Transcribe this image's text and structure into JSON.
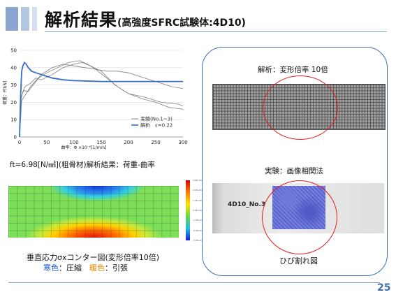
{
  "header": {
    "title_main": "解析結果",
    "title_sub": "(高強度SFRC試験体:4D10)"
  },
  "chart_data": {
    "type": "line",
    "xlabel": "曲率：Φ ×10⁻⁶[1/mm]",
    "ylabel": "荷重：P[kN]",
    "xlim": [
      0,
      300
    ],
    "ylim": [
      0,
      50
    ],
    "xticks": [
      0,
      50,
      100,
      150,
      200,
      250,
      300
    ],
    "yticks": [
      0,
      10,
      20,
      30,
      40,
      50
    ],
    "legend_position": "inside-bottom-right",
    "series": [
      {
        "name": "実験(No.1~3)",
        "color": "#7f7f7f",
        "points": [
          [
            0,
            0
          ],
          [
            3,
            22
          ],
          [
            6,
            26
          ],
          [
            10,
            29
          ],
          [
            20,
            31
          ],
          [
            30,
            34
          ],
          [
            40,
            33
          ],
          [
            60,
            36
          ],
          [
            80,
            40
          ],
          [
            100,
            42
          ],
          [
            115,
            43
          ],
          [
            130,
            41
          ],
          [
            150,
            38
          ],
          [
            175,
            30
          ],
          [
            200,
            25
          ],
          [
            225,
            22
          ],
          [
            250,
            20
          ],
          [
            275,
            17
          ],
          [
            300,
            16
          ]
        ]
      },
      {
        "name": "",
        "color": "#7f7f7f",
        "points": [
          [
            0,
            0
          ],
          [
            3,
            23
          ],
          [
            8,
            27
          ],
          [
            15,
            26
          ],
          [
            25,
            30
          ],
          [
            35,
            34
          ],
          [
            50,
            37
          ],
          [
            70,
            40
          ],
          [
            90,
            43
          ],
          [
            110,
            44
          ],
          [
            125,
            42
          ],
          [
            140,
            39
          ],
          [
            160,
            34
          ],
          [
            180,
            29
          ],
          [
            200,
            25
          ],
          [
            230,
            23
          ],
          [
            260,
            20
          ],
          [
            290,
            19
          ],
          [
            300,
            18
          ]
        ]
      },
      {
        "name": "",
        "color": "#7f7f7f",
        "points": [
          [
            0,
            0
          ],
          [
            4,
            21
          ],
          [
            10,
            24
          ],
          [
            20,
            29
          ],
          [
            40,
            36
          ],
          [
            60,
            40
          ],
          [
            80,
            42
          ],
          [
            100,
            41
          ],
          [
            120,
            40
          ],
          [
            140,
            39
          ],
          [
            160,
            38
          ],
          [
            180,
            38
          ],
          [
            200,
            37
          ],
          [
            220,
            35
          ],
          [
            240,
            33
          ],
          [
            260,
            31
          ],
          [
            280,
            29
          ],
          [
            300,
            28
          ]
        ]
      },
      {
        "name": "解析　ε=0.22",
        "color": "#3a6bc4",
        "points": [
          [
            0,
            0
          ],
          [
            2,
            25
          ],
          [
            4,
            38
          ],
          [
            6,
            41
          ],
          [
            9,
            43
          ],
          [
            12,
            42
          ],
          [
            16,
            40
          ],
          [
            22,
            38
          ],
          [
            30,
            37
          ],
          [
            40,
            36
          ],
          [
            60,
            34
          ],
          [
            80,
            33
          ],
          [
            100,
            32.5
          ],
          [
            150,
            32
          ],
          [
            200,
            32
          ],
          [
            250,
            32
          ],
          [
            300,
            32
          ]
        ]
      }
    ]
  },
  "chart_caption": "ft=6.98[N/㎟](粗骨材)解析結果：荷重-曲率",
  "contour": {
    "caption_line1": "垂直応力σxコンター図(変形倍率10倍)",
    "cold_label": "寒色",
    "cold_text": "：圧縮",
    "warm_label": "暖色",
    "warm_text": "：引張",
    "colorbar_labels": [
      "3.0E+00",
      "2.0E+00",
      "1.0E+00",
      "0.0E+00",
      "-1.0E+00",
      "-2.0E+00",
      "-3.0E+00"
    ],
    "colors": {
      "cold": "#1b57d6",
      "warm": "#e98a00"
    }
  },
  "right_panel": {
    "analysis_label": "解析：変形倍率 10倍",
    "experiment_label": "実験：画像相関法",
    "specimen_label": "4D10_No.3",
    "crack_label": "ひび割れ図",
    "highlight_color": "#e02020"
  },
  "footer": {
    "page_number": "25"
  }
}
